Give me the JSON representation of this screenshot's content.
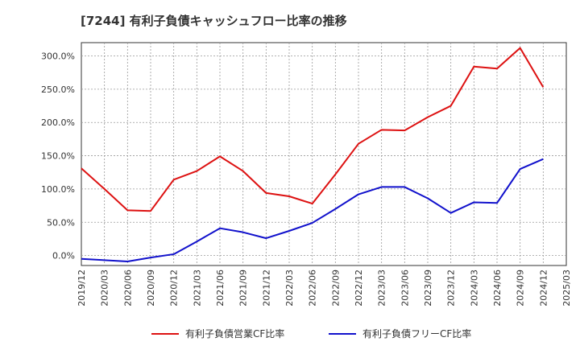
{
  "chart_data": {
    "type": "line",
    "title": "[7244]  有利子負債キャッシュフロー比率の推移",
    "xlabel": "",
    "ylabel": "",
    "ylim": [
      -15,
      320
    ],
    "yticks": [
      0,
      50,
      100,
      150,
      200,
      250,
      300
    ],
    "ytick_labels": [
      "0.0%",
      "50.0%",
      "100.0%",
      "150.0%",
      "200.0%",
      "250.0%",
      "300.0%"
    ],
    "x_ticks": [
      "2019/12",
      "2020/03",
      "2020/06",
      "2020/09",
      "2020/12",
      "2021/03",
      "2021/06",
      "2021/09",
      "2021/12",
      "2022/03",
      "2022/06",
      "2022/09",
      "2022/12",
      "2023/03",
      "2023/06",
      "2023/09",
      "2023/12",
      "2024/03",
      "2024/06",
      "2024/09",
      "2024/12",
      "2025/03"
    ],
    "grid": true,
    "legend_position": "bottom",
    "series": [
      {
        "name": "有利子負債営業CF比率",
        "color": "#dd1111",
        "x": [
          "2019/12",
          "2020/03",
          "2020/06",
          "2020/09",
          "2020/12",
          "2021/03",
          "2021/06",
          "2021/09",
          "2021/12",
          "2022/03",
          "2022/06",
          "2022/09",
          "2022/12",
          "2023/03",
          "2023/06",
          "2023/09",
          "2023/12",
          "2024/03",
          "2024/06",
          "2024/09",
          "2024/12"
        ],
        "values": [
          131,
          100,
          68,
          67,
          114,
          127,
          149,
          127,
          94,
          89,
          78,
          122,
          168,
          189,
          188,
          208,
          225,
          284,
          281,
          312,
          253
        ]
      },
      {
        "name": "有利子負債フリーCF比率",
        "color": "#1111cc",
        "x": [
          "2019/12",
          "2020/03",
          "2020/06",
          "2020/09",
          "2020/12",
          "2021/03",
          "2021/06",
          "2021/09",
          "2021/12",
          "2022/03",
          "2022/06",
          "2022/09",
          "2022/12",
          "2023/03",
          "2023/06",
          "2023/09",
          "2023/12",
          "2024/03",
          "2024/06",
          "2024/09",
          "2024/12"
        ],
        "values": [
          -5,
          -7,
          -9,
          -3,
          2,
          21,
          41,
          35,
          26,
          37,
          49,
          70,
          92,
          103,
          103,
          86,
          64,
          80,
          79,
          130,
          145
        ]
      }
    ]
  }
}
